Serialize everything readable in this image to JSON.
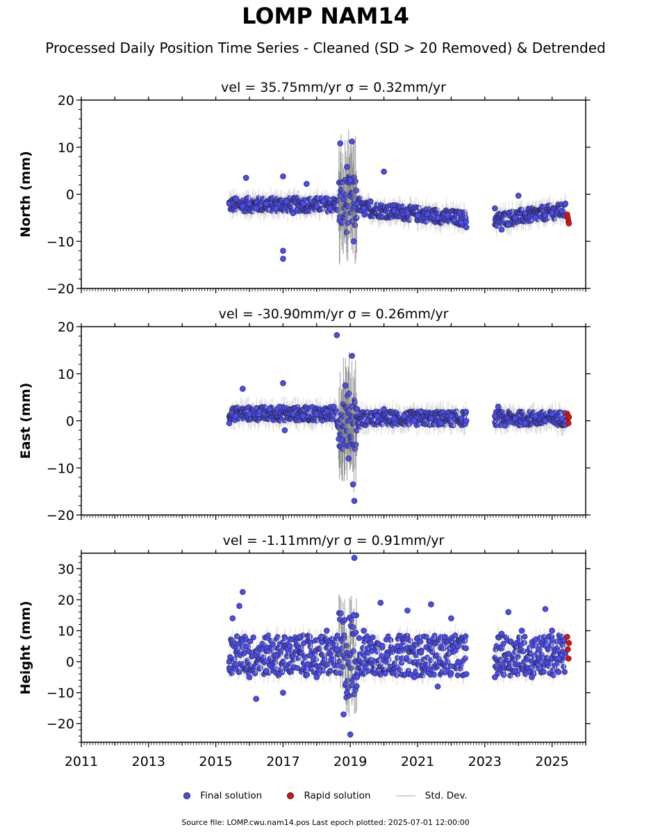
{
  "title": "LOMP NAM14",
  "subtitle": "Processed Daily Position Time Series - Cleaned (SD > 20 Removed) & Detrended",
  "legend": {
    "final": "Final solution",
    "rapid": "Rapid solution",
    "std": "Std. Dev."
  },
  "footer": "Source file: LOMP.cwu.nam14.pos  Last epoch plotted: 2025-07-01 12:00:00",
  "colors": {
    "final": "#4b4bf5",
    "rapid": "#e01010",
    "std": "#d3d3d3",
    "stdDense": "#808080"
  },
  "chart_data": {
    "type": "scatter",
    "xticks": [
      "2011",
      "2013",
      "2015",
      "2017",
      "2019",
      "2021",
      "2023",
      "2025"
    ],
    "xlim": [
      2011.0,
      2026.0
    ],
    "panels": [
      {
        "id": "north",
        "title": "vel = 35.75mm/yr   σ = 0.32mm/yr",
        "ylabel": "North (mm)",
        "ylim": [
          -20,
          20
        ],
        "yticks": [
          20,
          10,
          0,
          -10,
          -20
        ],
        "final": [
          [
            2015.4,
            -2.0
          ],
          [
            2015.6,
            -1.0
          ],
          [
            2015.8,
            -2.5
          ],
          [
            2015.9,
            3.5
          ],
          [
            2016.0,
            -2.0
          ],
          [
            2016.2,
            -3.0
          ],
          [
            2016.5,
            -2.0
          ],
          [
            2016.8,
            -3.0
          ],
          [
            2017.0,
            -12.0
          ],
          [
            2017.0,
            -13.7
          ],
          [
            2017.0,
            3.8
          ],
          [
            2017.1,
            -1.5
          ],
          [
            2017.3,
            -4.0
          ],
          [
            2017.6,
            -2.0
          ],
          [
            2017.7,
            2.2
          ],
          [
            2018.0,
            -2.5
          ],
          [
            2018.2,
            -1.5
          ],
          [
            2018.4,
            -3.0
          ],
          [
            2018.7,
            10.8
          ],
          [
            2018.8,
            -1.0
          ],
          [
            2018.9,
            5.8
          ],
          [
            2019.0,
            3.0
          ],
          [
            2019.05,
            11.2
          ],
          [
            2019.1,
            -10.0
          ],
          [
            2019.2,
            -2.0
          ],
          [
            2019.4,
            -3.0
          ],
          [
            2019.6,
            -1.5
          ],
          [
            2020.0,
            4.8
          ],
          [
            2020.3,
            -3.5
          ],
          [
            2020.7,
            -4.0
          ],
          [
            2021.0,
            -4.5
          ],
          [
            2021.3,
            -4.2
          ],
          [
            2021.6,
            -5.0
          ],
          [
            2021.9,
            -4.5
          ],
          [
            2022.1,
            -5.5
          ],
          [
            2022.3,
            -6.0
          ],
          [
            2022.45,
            -7.0
          ],
          [
            2023.3,
            -3.0
          ],
          [
            2023.5,
            -7.5
          ],
          [
            2023.7,
            -6.5
          ],
          [
            2023.9,
            -5.0
          ],
          [
            2024.0,
            -0.3
          ],
          [
            2024.2,
            -4.0
          ],
          [
            2024.5,
            -5.0
          ],
          [
            2024.8,
            -4.5
          ],
          [
            2025.0,
            -4.0
          ],
          [
            2025.3,
            -3.5
          ]
        ],
        "rapid": [
          [
            2025.45,
            -4.3
          ],
          [
            2025.47,
            -5.0
          ],
          [
            2025.49,
            -5.8
          ],
          [
            2025.5,
            -6.2
          ]
        ]
      },
      {
        "id": "east",
        "title": "vel = -30.90mm/yr   σ = 0.26mm/yr",
        "ylabel": "East (mm)",
        "ylim": [
          -20,
          20
        ],
        "yticks": [
          20,
          10,
          0,
          -10,
          -20
        ],
        "final": [
          [
            2015.4,
            -0.5
          ],
          [
            2015.6,
            1.0
          ],
          [
            2015.8,
            6.8
          ],
          [
            2016.0,
            1.5
          ],
          [
            2016.3,
            2.0
          ],
          [
            2016.6,
            2.5
          ],
          [
            2016.9,
            3.0
          ],
          [
            2017.0,
            8.0
          ],
          [
            2017.05,
            -2.0
          ],
          [
            2017.3,
            1.5
          ],
          [
            2017.6,
            1.0
          ],
          [
            2018.0,
            1.5
          ],
          [
            2018.3,
            2.0
          ],
          [
            2018.5,
            3.0
          ],
          [
            2018.6,
            18.2
          ],
          [
            2018.75,
            -4.0
          ],
          [
            2018.85,
            7.5
          ],
          [
            2018.95,
            -8.0
          ],
          [
            2019.05,
            13.8
          ],
          [
            2019.08,
            -13.5
          ],
          [
            2019.12,
            -17.0
          ],
          [
            2019.2,
            2.5
          ],
          [
            2019.5,
            0.0
          ],
          [
            2019.8,
            1.0
          ],
          [
            2020.0,
            2.5
          ],
          [
            2020.3,
            0.5
          ],
          [
            2020.6,
            1.0
          ],
          [
            2020.9,
            0.0
          ],
          [
            2021.1,
            2.0
          ],
          [
            2021.4,
            0.5
          ],
          [
            2021.7,
            -0.5
          ],
          [
            2022.0,
            1.0
          ],
          [
            2022.3,
            0.5
          ],
          [
            2022.45,
            0.0
          ],
          [
            2023.3,
            1.0
          ],
          [
            2023.4,
            3.0
          ],
          [
            2023.6,
            -1.0
          ],
          [
            2023.9,
            0.5
          ],
          [
            2024.2,
            -0.5
          ],
          [
            2024.5,
            1.0
          ],
          [
            2024.8,
            0.0
          ],
          [
            2025.0,
            1.5
          ],
          [
            2025.3,
            0.5
          ]
        ],
        "rapid": [
          [
            2025.45,
            1.5
          ],
          [
            2025.47,
            0.5
          ],
          [
            2025.49,
            -0.5
          ],
          [
            2025.5,
            0.8
          ]
        ]
      },
      {
        "id": "height",
        "title": "vel = -1.11mm/yr   σ = 0.91mm/yr",
        "ylabel": "Height (mm)",
        "ylim": [
          -26,
          35
        ],
        "yticks": [
          30,
          20,
          10,
          0,
          -10,
          -20
        ],
        "final": [
          [
            2015.4,
            0.0
          ],
          [
            2015.5,
            14.0
          ],
          [
            2015.7,
            18.0
          ],
          [
            2015.8,
            22.5
          ],
          [
            2015.9,
            5.0
          ],
          [
            2016.0,
            -5.0
          ],
          [
            2016.2,
            -12.0
          ],
          [
            2016.5,
            -3.0
          ],
          [
            2016.8,
            2.0
          ],
          [
            2017.0,
            -10.0
          ],
          [
            2017.2,
            5.0
          ],
          [
            2017.5,
            8.0
          ],
          [
            2017.8,
            2.0
          ],
          [
            2018.0,
            -5.0
          ],
          [
            2018.3,
            10.0
          ],
          [
            2018.6,
            4.0
          ],
          [
            2018.8,
            -17.0
          ],
          [
            2018.9,
            -10.0
          ],
          [
            2019.0,
            -23.5
          ],
          [
            2019.1,
            15.0
          ],
          [
            2019.12,
            33.5
          ],
          [
            2019.2,
            -5.0
          ],
          [
            2019.4,
            10.0
          ],
          [
            2019.6,
            6.0
          ],
          [
            2019.9,
            19.0
          ],
          [
            2020.1,
            2.0
          ],
          [
            2020.4,
            5.0
          ],
          [
            2020.7,
            16.5
          ],
          [
            2020.9,
            -5.0
          ],
          [
            2021.1,
            3.0
          ],
          [
            2021.4,
            18.5
          ],
          [
            2021.6,
            -8.0
          ],
          [
            2021.8,
            8.0
          ],
          [
            2022.0,
            14.0
          ],
          [
            2022.2,
            5.0
          ],
          [
            2022.45,
            -4.0
          ],
          [
            2023.3,
            -5.0
          ],
          [
            2023.5,
            9.0
          ],
          [
            2023.7,
            16.0
          ],
          [
            2023.9,
            -3.0
          ],
          [
            2024.1,
            10.0
          ],
          [
            2024.4,
            -5.0
          ],
          [
            2024.6,
            4.0
          ],
          [
            2024.8,
            17.0
          ],
          [
            2025.0,
            10.0
          ],
          [
            2025.2,
            1.0
          ],
          [
            2025.35,
            7.0
          ]
        ],
        "rapid": [
          [
            2025.45,
            8.0
          ],
          [
            2025.47,
            4.0
          ],
          [
            2025.49,
            1.0
          ],
          [
            2025.5,
            6.0
          ]
        ]
      }
    ]
  }
}
